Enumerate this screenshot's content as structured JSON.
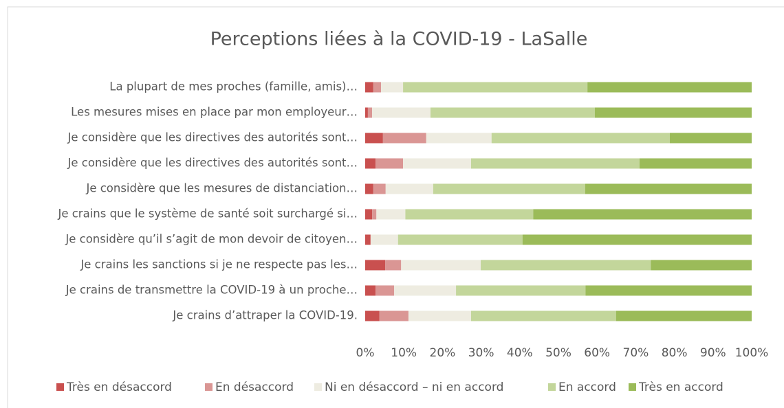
{
  "chart_data": {
    "type": "stacked_bar_horizontal_100",
    "title": "Perceptions liées à la COVID-19 - LaSalle",
    "categories": [
      "La plupart de mes proches (famille, amis)…",
      "Les mesures mises en place par mon employeur…",
      "Je considère que les directives des autorités sont…",
      "Je considère que les directives des autorités sont…",
      "Je considère que les mesures de distanciation…",
      "Je crains que le système de santé soit surchargé si…",
      "Je considère qu’il s’agit de mon devoir de citoyen…",
      "Je crains les sanctions si je ne respecte pas les…",
      "Je crains de transmettre la COVID-19 à un proche…",
      "Je crains d’attraper la COVID-19."
    ],
    "series": [
      {
        "name": "Très en désaccord",
        "color": "#c9504f",
        "values": [
          2.1,
          0.7,
          4.6,
          2.7,
          2.1,
          1.8,
          1.4,
          5.2,
          2.7,
          3.7
        ]
      },
      {
        "name": "En désaccord",
        "color": "#da9694",
        "values": [
          2.0,
          1.1,
          11.2,
          7.1,
          3.2,
          1.1,
          0,
          4.1,
          4.8,
          7.5
        ]
      },
      {
        "name": "Ni en désaccord – ni en accord",
        "color": "#eeece1",
        "values": [
          5.7,
          15.1,
          16.9,
          17.6,
          12.3,
          7.5,
          7.1,
          20.6,
          16.0,
          16.2
        ]
      },
      {
        "name": "En accord",
        "color": "#c3d69b",
        "values": [
          47.7,
          42.5,
          46.1,
          43.6,
          39.3,
          33.1,
          32.2,
          44.0,
          33.5,
          37.5
        ]
      },
      {
        "name": "Très en accord",
        "color": "#9bbb59",
        "values": [
          42.5,
          40.6,
          21.2,
          29.0,
          43.1,
          56.5,
          59.3,
          26.1,
          43.0,
          35.1
        ]
      }
    ],
    "xlim": [
      0,
      100
    ],
    "xticks": [
      {
        "value": 0,
        "label": "0%"
      },
      {
        "value": 10,
        "label": "10%"
      },
      {
        "value": 20,
        "label": "20%"
      },
      {
        "value": 30,
        "label": "30%"
      },
      {
        "value": 40,
        "label": "40%"
      },
      {
        "value": 50,
        "label": "50%"
      },
      {
        "value": 60,
        "label": "60%"
      },
      {
        "value": 70,
        "label": "70%"
      },
      {
        "value": 80,
        "label": "80%"
      },
      {
        "value": 90,
        "label": "90%"
      },
      {
        "value": 100,
        "label": "100%"
      }
    ],
    "grid": false,
    "legend": "bottom"
  }
}
